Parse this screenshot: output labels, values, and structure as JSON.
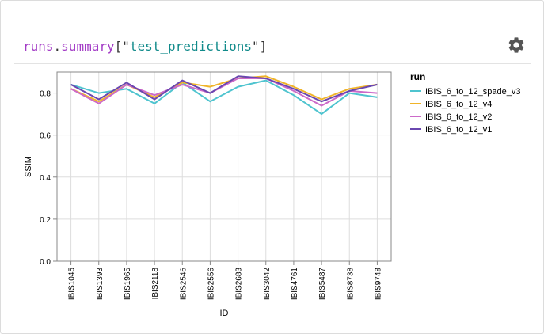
{
  "header": {
    "object": "runs",
    "dot": ".",
    "attribute": "summary",
    "open_bracket": "[\"",
    "key": "test_predictions",
    "close_bracket": "\"]"
  },
  "settings_icon": "gear-icon",
  "colors": {
    "axis": "#888888",
    "grid": "#dddddd",
    "header_object": "#a33cc6",
    "header_string": "#108a8a"
  },
  "chart_data": {
    "type": "line",
    "xlabel": "ID",
    "ylabel": "SSIM",
    "ylim": [
      0,
      0.9
    ],
    "yticks": [
      "0.0",
      "0.2",
      "0.4",
      "0.6",
      "0.8"
    ],
    "grid": true,
    "legend": {
      "title": "run",
      "position": "right"
    },
    "categories": [
      "IBIS1045",
      "IBIS1393",
      "IBIS1965",
      "IBIS2118",
      "IBIS2546",
      "IBIS2556",
      "IBIS2683",
      "IBIS3042",
      "IBIS4761",
      "IBIS5487",
      "IBIS8738",
      "IBIS9748"
    ],
    "series": [
      {
        "name": "IBIS_6_to_12_spade_v3",
        "color": "#4fc4cf",
        "values": [
          0.84,
          0.8,
          0.82,
          0.75,
          0.85,
          0.76,
          0.83,
          0.86,
          0.79,
          0.7,
          0.8,
          0.78
        ]
      },
      {
        "name": "IBIS_6_to_12_v4",
        "color": "#f0b429",
        "values": [
          0.82,
          0.76,
          0.84,
          0.78,
          0.85,
          0.83,
          0.87,
          0.88,
          0.83,
          0.77,
          0.82,
          0.84
        ]
      },
      {
        "name": "IBIS_6_to_12_v2",
        "color": "#cc6ac9",
        "values": [
          0.82,
          0.75,
          0.84,
          0.79,
          0.84,
          0.8,
          0.87,
          0.87,
          0.81,
          0.74,
          0.81,
          0.8
        ]
      },
      {
        "name": "IBIS_6_to_12_v1",
        "color": "#6a47b0",
        "values": [
          0.84,
          0.77,
          0.85,
          0.77,
          0.86,
          0.8,
          0.88,
          0.87,
          0.82,
          0.76,
          0.81,
          0.84
        ]
      }
    ]
  }
}
